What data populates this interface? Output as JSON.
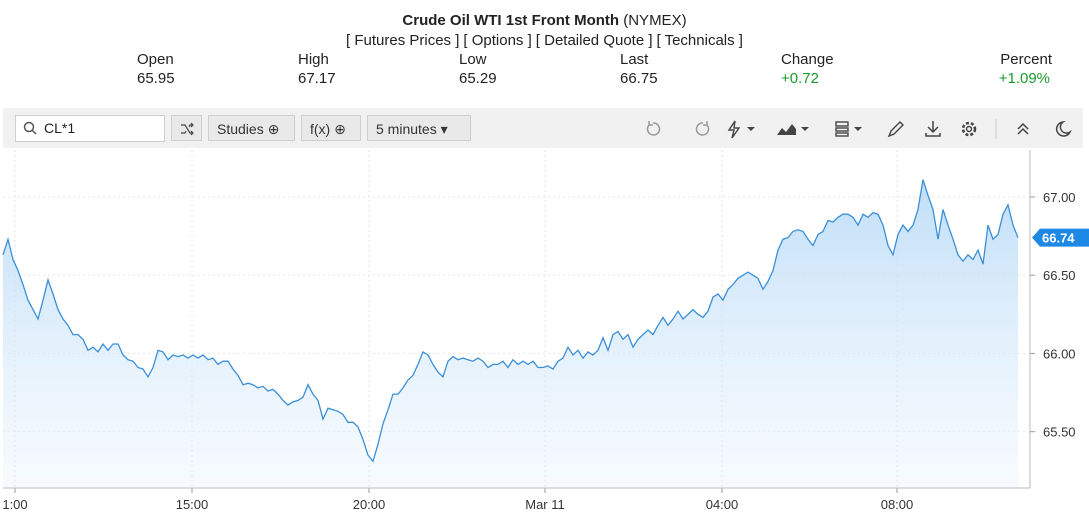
{
  "header": {
    "title": "Crude Oil WTI 1st Front Month",
    "exchange": "(NYMEX)",
    "links": [
      "[ Futures Prices ]",
      "[ Options ]",
      "[ Detailed Quote ]",
      "[ Technicals ]"
    ]
  },
  "quote": [
    {
      "label": "Open",
      "value": "65.95"
    },
    {
      "label": "High",
      "value": "67.17"
    },
    {
      "label": "Low",
      "value": "65.29"
    },
    {
      "label": "Last",
      "value": "66.75"
    },
    {
      "label": "Change",
      "value": "+0.72"
    },
    {
      "label": "Percent",
      "value": "+1.09%"
    }
  ],
  "toolbar": {
    "symbol": "CL*1",
    "studies": "Studies",
    "fx": "f(x)",
    "interval": "5 minutes"
  },
  "chart_data": {
    "type": "area",
    "color": "#3a8fd8",
    "last_price": 66.74,
    "values": [
      66.63,
      66.73,
      66.6,
      66.53,
      66.44,
      66.34,
      66.28,
      66.22,
      66.34,
      66.47,
      66.38,
      66.28,
      66.22,
      66.18,
      66.12,
      66.12,
      66.09,
      66.02,
      66.04,
      66.01,
      66.06,
      66.02,
      66.06,
      66.06,
      65.99,
      65.96,
      65.95,
      65.91,
      65.9,
      65.85,
      65.91,
      66.02,
      66.01,
      65.96,
      65.99,
      65.98,
      65.99,
      65.97,
      65.99,
      65.97,
      65.99,
      65.96,
      65.97,
      65.93,
      65.95,
      65.95,
      65.9,
      65.86,
      65.8,
      65.81,
      65.8,
      65.78,
      65.79,
      65.76,
      65.77,
      65.74,
      65.7,
      65.67,
      65.69,
      65.7,
      65.72,
      65.8,
      65.74,
      65.7,
      65.58,
      65.65,
      65.64,
      65.63,
      65.61,
      65.56,
      65.56,
      65.53,
      65.45,
      65.35,
      65.31,
      65.42,
      65.55,
      65.64,
      65.74,
      65.74,
      65.78,
      65.83,
      65.86,
      65.93,
      66.01,
      65.99,
      65.93,
      65.88,
      65.85,
      65.95,
      65.98,
      65.96,
      65.97,
      65.96,
      65.95,
      65.97,
      65.95,
      65.91,
      65.93,
      65.93,
      65.95,
      65.91,
      65.96,
      65.93,
      65.95,
      65.93,
      65.95,
      65.91,
      65.91,
      65.92,
      65.9,
      65.95,
      65.97,
      66.04,
      65.99,
      66.02,
      65.97,
      66.01,
      65.99,
      66.02,
      66.1,
      66.02,
      66.12,
      66.14,
      66.09,
      66.12,
      66.04,
      66.09,
      66.12,
      66.15,
      66.12,
      66.18,
      66.23,
      66.18,
      66.22,
      66.27,
      66.22,
      66.25,
      66.28,
      66.25,
      66.23,
      66.27,
      66.36,
      66.38,
      66.34,
      66.41,
      66.44,
      66.48,
      66.5,
      66.52,
      66.5,
      66.48,
      66.41,
      66.46,
      66.53,
      66.66,
      66.73,
      66.74,
      66.78,
      66.79,
      66.78,
      66.73,
      66.69,
      66.76,
      66.78,
      66.85,
      66.84,
      66.87,
      66.89,
      66.89,
      66.87,
      66.82,
      66.89,
      66.87,
      66.9,
      66.89,
      66.82,
      66.69,
      66.63,
      66.76,
      66.82,
      66.78,
      66.82,
      66.92,
      67.11,
      67.01,
      66.92,
      66.73,
      66.92,
      66.82,
      66.73,
      66.63,
      66.59,
      66.63,
      66.6,
      66.66,
      66.57,
      66.82,
      66.73,
      66.76,
      66.89,
      66.95,
      66.82,
      66.74
    ],
    "xlim": [
      0,
      205.4
    ],
    "xticks": [
      {
        "value": 2.4,
        "label": "1:00"
      },
      {
        "value": 37.8,
        "label": "15:00"
      },
      {
        "value": 73.2,
        "label": "20:00"
      },
      {
        "value": 108.4,
        "label": "Mar 11"
      },
      {
        "value": 143.8,
        "label": "04:00"
      },
      {
        "value": 178.8,
        "label": "08:00"
      }
    ],
    "ylim": [
      65.14,
      67.3
    ],
    "yticks": [
      {
        "value": 65.5,
        "label": "65.50"
      },
      {
        "value": 66,
        "label": "66.00"
      },
      {
        "value": 66.5,
        "label": "66.50"
      },
      {
        "value": 67,
        "label": "67.00"
      }
    ],
    "grid": true
  }
}
